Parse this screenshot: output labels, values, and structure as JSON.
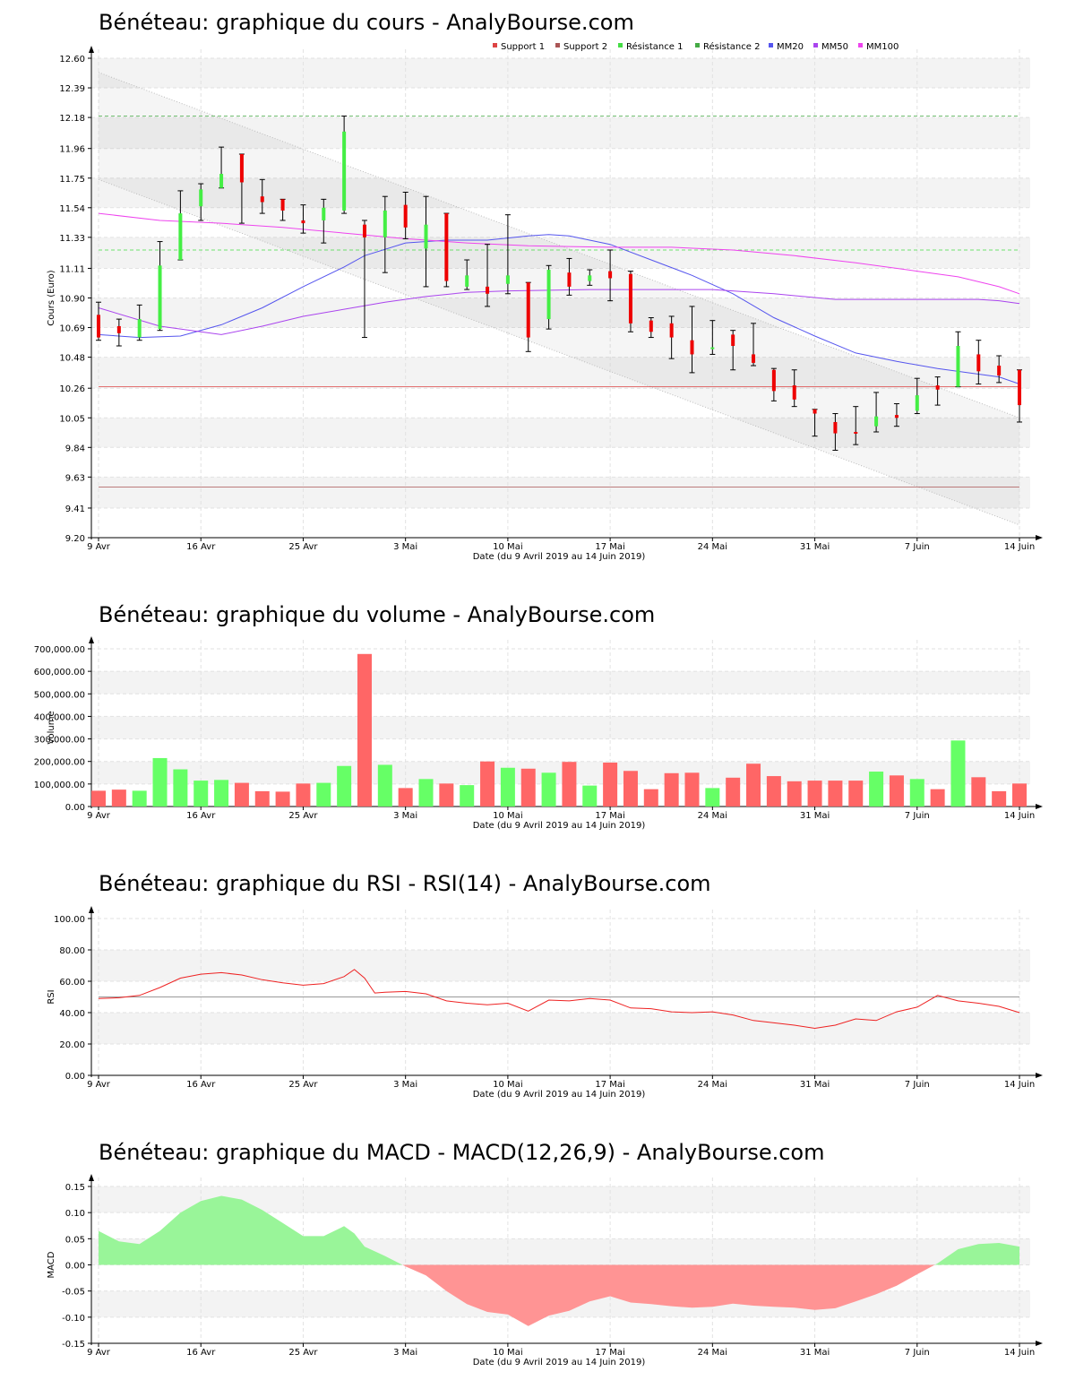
{
  "x_date_label": "Date (du 9 Avril 2019 au 14 Juin 2019)",
  "x_ticks": [
    {
      "day": 0,
      "label": "9 Avr"
    },
    {
      "day": 5,
      "label": "16 Avr"
    },
    {
      "day": 10,
      "label": "25 Avr"
    },
    {
      "day": 15,
      "label": "3 Mai"
    },
    {
      "day": 20,
      "label": "10 Mai"
    },
    {
      "day": 25,
      "label": "17 Mai"
    },
    {
      "day": 30,
      "label": "24 Mai"
    },
    {
      "day": 35,
      "label": "31 Mai"
    },
    {
      "day": 40,
      "label": "7 Juin"
    },
    {
      "day": 45,
      "label": "14 Juin"
    }
  ],
  "colors": {
    "up": "#44ee44",
    "down": "#ee0000",
    "vol_up": "#66ff66",
    "vol_down": "#ff6666",
    "mm20": "#6666ee",
    "mm50": "#aa44ee",
    "mm100": "#ee44ee"
  },
  "chart_data": [
    {
      "type": "candlestick",
      "title": "Bénéteau: graphique du cours - AnalyBourse.com",
      "ylabel": "Cours (Euro)",
      "ylim": [
        9.2,
        12.6
      ],
      "y_ticks": [
        "9.20",
        "9.41",
        "9.63",
        "9.84",
        "10.05",
        "10.26",
        "10.48",
        "10.69",
        "10.90",
        "11.11",
        "11.33",
        "11.54",
        "11.75",
        "11.96",
        "12.18",
        "12.39",
        "12.60"
      ],
      "legend": [
        {
          "name": "Support 1",
          "color": "#dd4444"
        },
        {
          "name": "Support 2",
          "color": "#aa5555"
        },
        {
          "name": "Résistance 1",
          "color": "#44dd44"
        },
        {
          "name": "Résistance 2",
          "color": "#44aa44"
        },
        {
          "name": "MM20",
          "color": "#5555ee"
        },
        {
          "name": "MM50",
          "color": "#aa44ee"
        },
        {
          "name": "MM100",
          "color": "#ee44ee"
        }
      ],
      "levels": [
        {
          "name": "Support 1",
          "value": 10.27,
          "color": "#dd4444",
          "dash": false
        },
        {
          "name": "Support 2",
          "value": 9.56,
          "color": "#aa5555",
          "dash": false
        },
        {
          "name": "Résistance 1",
          "value": 11.24,
          "color": "#44dd44",
          "dash": true
        },
        {
          "name": "Résistance 2",
          "value": 12.19,
          "color": "#44aa44",
          "dash": true
        }
      ],
      "channel": {
        "upper": [
          [
            0,
            12.5
          ],
          [
            45,
            10.05
          ]
        ],
        "lower": [
          [
            0,
            11.74
          ],
          [
            45,
            9.29
          ]
        ]
      },
      "candles": [
        {
          "o": 10.78,
          "h": 10.87,
          "l": 10.6,
          "c": 10.62
        },
        {
          "o": 10.7,
          "h": 10.75,
          "l": 10.56,
          "c": 10.65
        },
        {
          "o": 10.62,
          "h": 10.85,
          "l": 10.6,
          "c": 10.75
        },
        {
          "o": 10.68,
          "h": 11.3,
          "l": 10.67,
          "c": 11.13
        },
        {
          "o": 11.17,
          "h": 11.66,
          "l": 11.17,
          "c": 11.5
        },
        {
          "o": 11.55,
          "h": 11.71,
          "l": 11.45,
          "c": 11.67
        },
        {
          "o": 11.68,
          "h": 11.97,
          "l": 11.68,
          "c": 11.78
        },
        {
          "o": 11.92,
          "h": 11.92,
          "l": 11.43,
          "c": 11.72
        },
        {
          "o": 11.62,
          "h": 11.74,
          "l": 11.5,
          "c": 11.58
        },
        {
          "o": 11.6,
          "h": 11.6,
          "l": 11.45,
          "c": 11.52
        },
        {
          "o": 11.45,
          "h": 11.56,
          "l": 11.36,
          "c": 11.43
        },
        {
          "o": 11.45,
          "h": 11.6,
          "l": 11.29,
          "c": 11.54
        },
        {
          "o": 11.52,
          "h": 12.19,
          "l": 11.5,
          "c": 12.08
        },
        {
          "o": 11.42,
          "h": 11.45,
          "l": 10.62,
          "c": 11.33
        },
        {
          "o": 11.33,
          "h": 11.62,
          "l": 11.08,
          "c": 11.52
        },
        {
          "o": 11.56,
          "h": 11.65,
          "l": 11.32,
          "c": 11.4
        },
        {
          "o": 11.25,
          "h": 11.62,
          "l": 10.98,
          "c": 11.42
        },
        {
          "o": 11.5,
          "h": 11.5,
          "l": 10.98,
          "c": 11.02
        },
        {
          "o": 10.98,
          "h": 11.17,
          "l": 10.96,
          "c": 11.06
        },
        {
          "o": 10.98,
          "h": 11.28,
          "l": 10.84,
          "c": 10.93
        },
        {
          "o": 11.0,
          "h": 11.49,
          "l": 10.93,
          "c": 11.06
        },
        {
          "o": 11.01,
          "h": 11.01,
          "l": 10.52,
          "c": 10.62
        },
        {
          "o": 10.75,
          "h": 11.13,
          "l": 10.68,
          "c": 11.1
        },
        {
          "o": 11.08,
          "h": 11.18,
          "l": 10.92,
          "c": 10.98
        },
        {
          "o": 11.02,
          "h": 11.1,
          "l": 10.99,
          "c": 11.06
        },
        {
          "o": 11.09,
          "h": 11.24,
          "l": 10.88,
          "c": 11.04
        },
        {
          "o": 11.07,
          "h": 11.09,
          "l": 10.66,
          "c": 10.72
        },
        {
          "o": 10.74,
          "h": 10.76,
          "l": 10.62,
          "c": 10.66
        },
        {
          "o": 10.72,
          "h": 10.77,
          "l": 10.47,
          "c": 10.62
        },
        {
          "o": 10.6,
          "h": 10.84,
          "l": 10.37,
          "c": 10.5
        },
        {
          "o": 10.55,
          "h": 10.74,
          "l": 10.5,
          "c": 10.55
        },
        {
          "o": 10.64,
          "h": 10.67,
          "l": 10.39,
          "c": 10.56
        },
        {
          "o": 10.5,
          "h": 10.72,
          "l": 10.42,
          "c": 10.44
        },
        {
          "o": 10.39,
          "h": 10.4,
          "l": 10.17,
          "c": 10.24
        },
        {
          "o": 10.28,
          "h": 10.39,
          "l": 10.13,
          "c": 10.18
        },
        {
          "o": 10.11,
          "h": 10.11,
          "l": 9.92,
          "c": 10.08
        },
        {
          "o": 10.02,
          "h": 10.08,
          "l": 9.82,
          "c": 9.94
        },
        {
          "o": 9.95,
          "h": 10.13,
          "l": 9.86,
          "c": 9.94
        },
        {
          "o": 9.99,
          "h": 10.23,
          "l": 9.95,
          "c": 10.06
        },
        {
          "o": 10.07,
          "h": 10.15,
          "l": 9.99,
          "c": 10.05
        },
        {
          "o": 10.1,
          "h": 10.33,
          "l": 10.08,
          "c": 10.21
        },
        {
          "o": 10.28,
          "h": 10.34,
          "l": 10.14,
          "c": 10.25
        },
        {
          "o": 10.27,
          "h": 10.66,
          "l": 10.27,
          "c": 10.56
        },
        {
          "o": 10.5,
          "h": 10.6,
          "l": 10.29,
          "c": 10.38
        },
        {
          "o": 10.42,
          "h": 10.49,
          "l": 10.3,
          "c": 10.35
        },
        {
          "o": 10.39,
          "h": 10.39,
          "l": 10.02,
          "c": 10.14
        }
      ],
      "ma": [
        {
          "name": "MM20",
          "color": "#5555ee",
          "points": [
            [
              0,
              10.64
            ],
            [
              2,
              10.62
            ],
            [
              4,
              10.63
            ],
            [
              6,
              10.71
            ],
            [
              8,
              10.83
            ],
            [
              10,
              10.98
            ],
            [
              12,
              11.12
            ],
            [
              13,
              11.2
            ],
            [
              15,
              11.29
            ],
            [
              17,
              11.31
            ],
            [
              19,
              11.31
            ],
            [
              21,
              11.34
            ],
            [
              22,
              11.35
            ],
            [
              23,
              11.34
            ],
            [
              25,
              11.28
            ],
            [
              27,
              11.17
            ],
            [
              29,
              11.06
            ],
            [
              31,
              10.93
            ],
            [
              33,
              10.76
            ],
            [
              35,
              10.63
            ],
            [
              37,
              10.51
            ],
            [
              39,
              10.45
            ],
            [
              41,
              10.4
            ],
            [
              43,
              10.36
            ],
            [
              44,
              10.34
            ],
            [
              45,
              10.29
            ]
          ]
        },
        {
          "name": "MM50",
          "color": "#aa44ee",
          "points": [
            [
              0,
              10.83
            ],
            [
              3,
              10.7
            ],
            [
              6,
              10.64
            ],
            [
              8,
              10.7
            ],
            [
              10,
              10.77
            ],
            [
              12,
              10.82
            ],
            [
              14,
              10.87
            ],
            [
              16,
              10.91
            ],
            [
              18,
              10.94
            ],
            [
              20,
              10.95
            ],
            [
              24,
              10.96
            ],
            [
              27,
              10.96
            ],
            [
              30,
              10.96
            ],
            [
              33,
              10.93
            ],
            [
              36,
              10.89
            ],
            [
              40,
              10.89
            ],
            [
              43,
              10.89
            ],
            [
              44,
              10.88
            ],
            [
              45,
              10.86
            ]
          ]
        },
        {
          "name": "MM100",
          "color": "#ee44ee",
          "points": [
            [
              0,
              11.5
            ],
            [
              3,
              11.45
            ],
            [
              6,
              11.43
            ],
            [
              9,
              11.4
            ],
            [
              12,
              11.36
            ],
            [
              15,
              11.32
            ],
            [
              18,
              11.29
            ],
            [
              21,
              11.27
            ],
            [
              25,
              11.26
            ],
            [
              28,
              11.26
            ],
            [
              31,
              11.24
            ],
            [
              34,
              11.2
            ],
            [
              37,
              11.15
            ],
            [
              40,
              11.09
            ],
            [
              42,
              11.05
            ],
            [
              44,
              10.98
            ],
            [
              45,
              10.93
            ]
          ]
        }
      ]
    },
    {
      "type": "bar",
      "title": "Bénéteau: graphique du volume - AnalyBourse.com",
      "ylabel": "Volume",
      "ylim": [
        0,
        700000
      ],
      "y_ticks": [
        "0.00",
        "100,000.00",
        "200,000.00",
        "300,000.00",
        "400,000.00",
        "500,000.00",
        "600,000.00",
        "700,000.00"
      ],
      "values": [
        70000,
        75000,
        70000,
        215000,
        165000,
        115000,
        118000,
        105000,
        68000,
        66000,
        102000,
        105000,
        180000,
        677000,
        185000,
        82000,
        122000,
        102000,
        95000,
        200000,
        172000,
        168000,
        150000,
        198000,
        93000,
        195000,
        158000,
        77000,
        148000,
        150000,
        82000,
        128000,
        190000,
        135000,
        112000,
        115000,
        115000,
        115000,
        155000,
        138000,
        122000,
        77000,
        293000,
        130000,
        68000,
        102000
      ]
    },
    {
      "type": "line",
      "title": "Bénéteau: graphique du RSI - RSI(14) - AnalyBourse.com",
      "ylabel": "RSI",
      "ylim": [
        0,
        100
      ],
      "y_ticks": [
        "0.00",
        "20.00",
        "40.00",
        "60.00",
        "80.00",
        "100.00"
      ],
      "reference": 50,
      "x": [
        0,
        1,
        2,
        3,
        4,
        5,
        6,
        7,
        8,
        9,
        10,
        11,
        12,
        12.5,
        13,
        13.5,
        14,
        15,
        16,
        17,
        18,
        19,
        20,
        21,
        22,
        23,
        24,
        25,
        26,
        27,
        28,
        29,
        30,
        31,
        32,
        33,
        34,
        35,
        36,
        37,
        38,
        39,
        40,
        41,
        42,
        43,
        44,
        45
      ],
      "values": [
        49,
        49.5,
        51,
        56,
        62,
        64.5,
        65.5,
        64,
        61,
        59,
        57.5,
        58.5,
        63,
        67.5,
        62,
        52.5,
        53,
        53.5,
        52,
        47.5,
        46,
        45,
        46,
        41,
        48,
        47.5,
        49,
        48,
        43,
        42.5,
        40.5,
        40,
        40.5,
        38.5,
        35,
        33.5,
        32,
        30,
        32,
        36,
        35,
        40.5,
        43.5,
        51,
        47.5,
        46,
        44,
        40
      ]
    },
    {
      "type": "area",
      "title": "Bénéteau: graphique du MACD - MACD(12,26,9) - AnalyBourse.com",
      "ylabel": "MACD",
      "ylim": [
        -0.15,
        0.15
      ],
      "y_ticks": [
        "-0.15",
        "-0.10",
        "-0.05",
        "0.00",
        "0.05",
        "0.10",
        "0.15"
      ],
      "x": [
        0,
        1,
        2,
        3,
        4,
        5,
        6,
        7,
        8,
        9,
        10,
        11,
        12,
        12.5,
        13,
        14,
        15,
        16,
        17,
        18,
        19,
        20,
        21,
        22,
        23,
        24,
        25,
        26,
        27,
        28,
        29,
        30,
        31,
        32,
        33,
        34,
        35,
        36,
        37,
        38,
        39,
        40,
        41,
        42,
        43,
        44,
        45
      ],
      "values": [
        0.065,
        0.045,
        0.04,
        0.065,
        0.1,
        0.122,
        0.132,
        0.125,
        0.105,
        0.08,
        0.055,
        0.055,
        0.074,
        0.06,
        0.035,
        0.017,
        -0.003,
        -0.02,
        -0.05,
        -0.075,
        -0.09,
        -0.095,
        -0.117,
        -0.097,
        -0.088,
        -0.07,
        -0.06,
        -0.072,
        -0.075,
        -0.079,
        -0.082,
        -0.08,
        -0.074,
        -0.078,
        -0.08,
        -0.082,
        -0.086,
        -0.083,
        -0.07,
        -0.056,
        -0.04,
        -0.018,
        0.003,
        0.03,
        0.04,
        0.042,
        0.035
      ]
    }
  ]
}
